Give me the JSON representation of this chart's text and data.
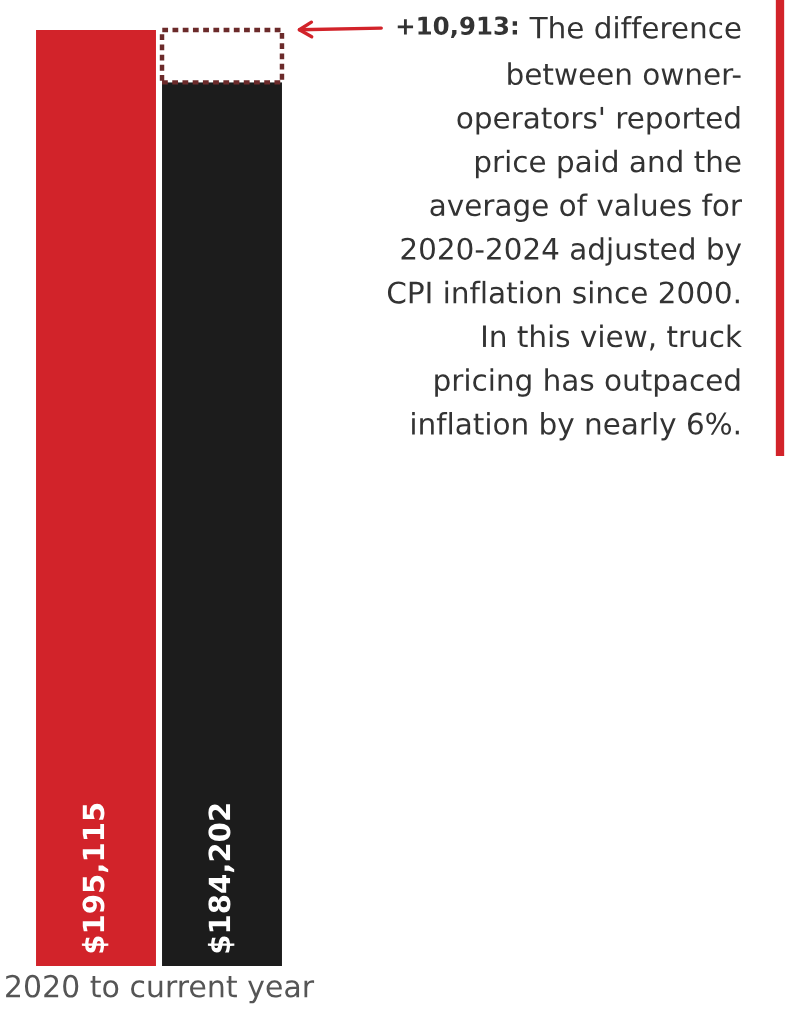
{
  "chart_data": {
    "type": "bar",
    "xlabel": "2020 to current year",
    "categories": [
      null,
      null
    ],
    "stacked": true,
    "tick_labels": false,
    "series": [
      {
        "colors": [
          "#d2232a",
          "#1c1c1c"
        ],
        "values": [
          195115,
          184202
        ],
        "value_labels": [
          "$195,115",
          "$184,202"
        ]
      },
      {
        "color": "#6b2a2a",
        "values": [
          null,
          10913
        ],
        "line_style": "dotted"
      }
    ],
    "annotations": [
      "+10,913: The difference\nbetween owner-\noperators' reported\nprice paid and the\naverage of values for\n2020-2024 adjusted by\nCPI inflation since 2000.\nIn this view, truck\npricing has outpaced\ninflation by nearly 6%."
    ]
  }
}
